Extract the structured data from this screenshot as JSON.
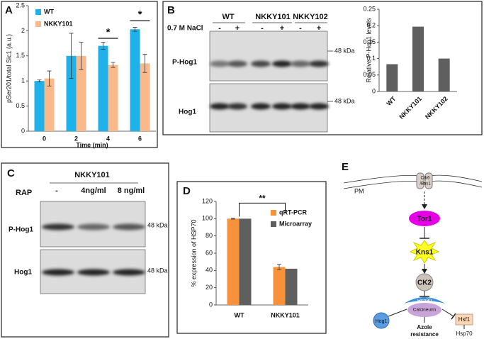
{
  "chart_data": [
    {
      "type": "bar",
      "y_label": "pSer201/total Sic1 (a.u.)",
      "x_label": "Time (min)",
      "categories": [
        "0",
        "2",
        "4",
        "6"
      ],
      "series": [
        {
          "name": "WT",
          "color": "#1fb1ea",
          "values": [
            1.0,
            1.5,
            1.7,
            2.03
          ],
          "errors": [
            0.02,
            0.45,
            0.07,
            0.04
          ]
        },
        {
          "name": "NKKY101",
          "color": "#f9b98b",
          "values": [
            1.05,
            1.5,
            1.32,
            1.35
          ],
          "errors": [
            0.15,
            0.27,
            0.05,
            0.18
          ]
        }
      ],
      "ylim": [
        0,
        2.5
      ],
      "yticks": [
        0,
        0.5,
        1,
        1.5,
        2,
        2.5
      ],
      "legend": "upper left",
      "annotations": [
        {
          "text": "*",
          "between": [
            "4"
          ],
          "y": 1.85
        },
        {
          "text": "*",
          "between": [
            "6"
          ],
          "y": 2.2
        }
      ]
    },
    {
      "type": "bar",
      "y_label": "Relative P-Hog1 levels",
      "categories": [
        "WT",
        "NKKY101",
        "NKKY102"
      ],
      "series": [
        {
          "color": "#5f5f5f",
          "values": [
            0.083,
            0.197,
            0.1
          ]
        }
      ],
      "ylim": [
        0,
        0.25
      ],
      "yticks": [
        0,
        0.05,
        0.1,
        0.15,
        0.2,
        0.25
      ],
      "x_label_rotation": -45
    },
    {
      "type": "bar",
      "y_label": "% expression of HSP70",
      "categories": [
        "WT",
        "NKKY101"
      ],
      "series": [
        {
          "name": "qRT-PCR",
          "color": "#f7923a",
          "values": [
            100,
            44
          ],
          "errors": [
            0.5,
            3
          ]
        },
        {
          "name": "Microarray",
          "color": "#5f5f5f",
          "values": [
            100,
            42
          ]
        }
      ],
      "ylim": [
        0,
        120
      ],
      "yticks": [
        0,
        20,
        40,
        60,
        80,
        100,
        120
      ],
      "legend": "upper right",
      "annotations": [
        {
          "text": "**",
          "between": [
            "WT",
            "NKKY101"
          ],
          "y": 118
        }
      ]
    }
  ],
  "figure": {
    "A": {
      "label": "A"
    },
    "B": {
      "label": "B",
      "strains": [
        "WT",
        "NKKY101",
        "NKKY102"
      ],
      "treatment": "0.7 M NaCl",
      "conditions": [
        "-",
        "+",
        "-",
        "+",
        "-",
        "+"
      ],
      "rows": [
        "P-Hog1",
        "Hog1"
      ],
      "markers": [
        "48 kDa",
        "48 kDa"
      ]
    },
    "C": {
      "label": "C",
      "strain": "NKKY101",
      "treatment": "RAP",
      "conditions": [
        "-",
        "4ng/ml",
        "8 ng/ml"
      ],
      "rows": [
        "P-Hog1",
        "Hog1"
      ],
      "markers": [
        "48 kDa",
        "48 kDa"
      ]
    },
    "D": {
      "label": "D"
    },
    "E": {
      "label": "E",
      "membrane": "PM",
      "receptor": [
        "Cdr6",
        "/Bas1"
      ],
      "tor1": "Tor1",
      "kns1": "Kns1",
      "ck2": "CK2",
      "hsp90": "Hsp90",
      "calcineurin": "Calcineurin",
      "hog1": "Hog1",
      "hsf1": "Hsf1",
      "azole": [
        "Azole",
        "resistance"
      ],
      "hsp70": "Hsp70"
    }
  }
}
